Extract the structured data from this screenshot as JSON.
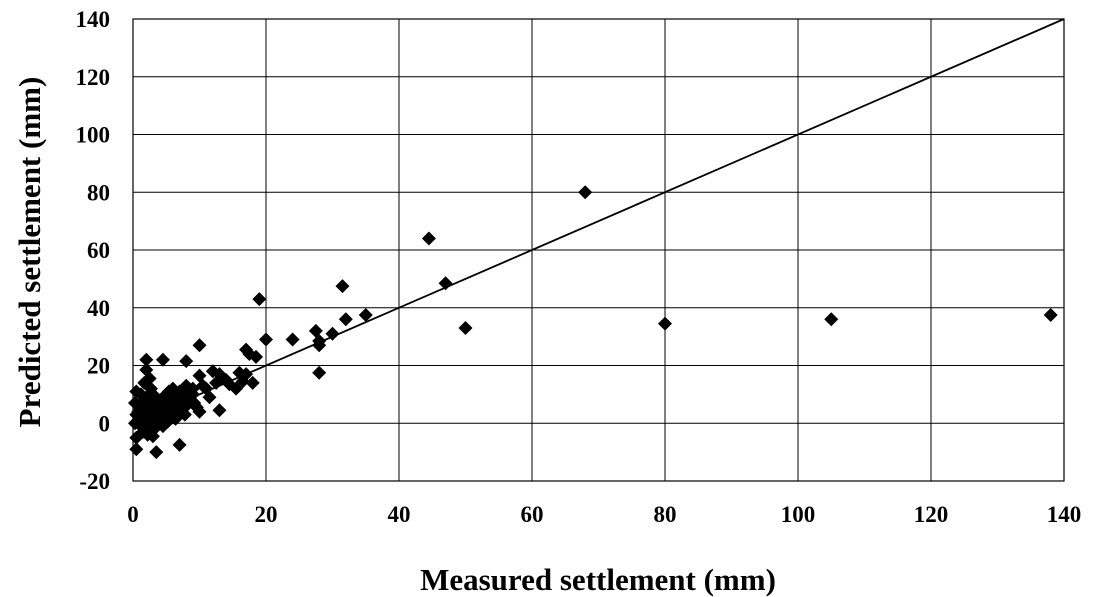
{
  "chart_data": {
    "type": "scatter",
    "xlabel": "Measured settlement (mm)",
    "ylabel": "Predicted settlement (mm)",
    "xlim": [
      0,
      140
    ],
    "ylim": [
      -20,
      140
    ],
    "x_ticks": [
      0,
      20,
      40,
      60,
      80,
      100,
      120,
      140
    ],
    "y_ticks": [
      -20,
      0,
      20,
      40,
      60,
      80,
      100,
      120,
      140
    ],
    "x_tick_labels": [
      "0",
      "20",
      "40",
      "60",
      "80",
      "100",
      "120",
      "140"
    ],
    "y_tick_labels": [
      "-20",
      "0",
      "20",
      "40",
      "60",
      "80",
      "100",
      "120",
      "140"
    ],
    "grid": true,
    "marker": "diamond",
    "colors": {
      "marker": "#000000",
      "line": "#000000",
      "grid": "#000000"
    },
    "reference_line": {
      "from": [
        0,
        0
      ],
      "to": [
        140,
        140
      ]
    },
    "points": [
      [
        68,
        80
      ],
      [
        44.5,
        64
      ],
      [
        47,
        48.5
      ],
      [
        31.5,
        47.5
      ],
      [
        50,
        33
      ],
      [
        80,
        34.5
      ],
      [
        105,
        36
      ],
      [
        138,
        37.5
      ],
      [
        19,
        43
      ],
      [
        35,
        37.5
      ],
      [
        32,
        36
      ],
      [
        30,
        31
      ],
      [
        28,
        28.5
      ],
      [
        27.5,
        32
      ],
      [
        28,
        27
      ],
      [
        28,
        17.5
      ],
      [
        24,
        29
      ],
      [
        20,
        29
      ],
      [
        18.5,
        23
      ],
      [
        17.5,
        24
      ],
      [
        17,
        25.5
      ],
      [
        17,
        17
      ],
      [
        18,
        14
      ],
      [
        16,
        17.5
      ],
      [
        15.5,
        12
      ],
      [
        14,
        15
      ],
      [
        13,
        17
      ],
      [
        12,
        18
      ],
      [
        13,
        4.5
      ],
      [
        11,
        12
      ],
      [
        10,
        27
      ],
      [
        10,
        16.5
      ],
      [
        9,
        12
      ],
      [
        10,
        4
      ],
      [
        8,
        21.5
      ],
      [
        8,
        13
      ],
      [
        8,
        9
      ],
      [
        7,
        11
      ],
      [
        7,
        -7.5
      ],
      [
        6,
        12
      ],
      [
        6,
        8
      ],
      [
        5,
        7
      ],
      [
        5,
        3
      ],
      [
        4.5,
        22
      ],
      [
        4,
        5
      ],
      [
        3.5,
        -10
      ],
      [
        3,
        10
      ],
      [
        3,
        3
      ],
      [
        2.5,
        15.5
      ],
      [
        2,
        22
      ],
      [
        2,
        18.5
      ],
      [
        2,
        9
      ],
      [
        2,
        5
      ],
      [
        1.5,
        -3
      ],
      [
        1,
        2
      ],
      [
        1,
        6
      ],
      [
        0.5,
        11
      ],
      [
        0.5,
        3
      ],
      [
        0.5,
        -9
      ],
      [
        0.5,
        -5
      ],
      [
        0.3,
        0
      ],
      [
        1.2,
        -1
      ],
      [
        2.2,
        1
      ],
      [
        3.2,
        -2
      ],
      [
        4.2,
        2
      ],
      [
        5.2,
        0.5
      ],
      [
        6.2,
        4
      ],
      [
        7.2,
        6
      ],
      [
        8.2,
        8
      ],
      [
        9.2,
        7
      ],
      [
        2.8,
        7
      ],
      [
        3.8,
        4
      ],
      [
        4.8,
        9
      ],
      [
        5.8,
        6
      ],
      [
        6.8,
        9
      ],
      [
        7.8,
        3
      ],
      [
        1.8,
        3
      ],
      [
        0.8,
        4
      ],
      [
        3,
        -4.5
      ],
      [
        4,
        6
      ],
      [
        5,
        10
      ],
      [
        6,
        2
      ],
      [
        7,
        5
      ],
      [
        8,
        6
      ],
      [
        9,
        10
      ],
      [
        10.5,
        13
      ],
      [
        11.5,
        9
      ],
      [
        12.5,
        14
      ],
      [
        1.5,
        8
      ],
      [
        2.5,
        -1
      ],
      [
        3.5,
        1
      ],
      [
        4.5,
        -1
      ],
      [
        5.5,
        4.5
      ],
      [
        6.5,
        7.5
      ],
      [
        7.5,
        10
      ],
      [
        2.2,
        -4
      ],
      [
        1.2,
        10
      ],
      [
        0.3,
        7
      ],
      [
        3.6,
        8.5
      ],
      [
        4.4,
        3.5
      ],
      [
        6.4,
        1.5
      ],
      [
        8.6,
        10.5
      ],
      [
        9.6,
        5.5
      ],
      [
        14.5,
        13.5
      ],
      [
        16.5,
        14.5
      ],
      [
        2.7,
        12
      ],
      [
        1.7,
        14
      ],
      [
        5.4,
        11
      ]
    ]
  }
}
